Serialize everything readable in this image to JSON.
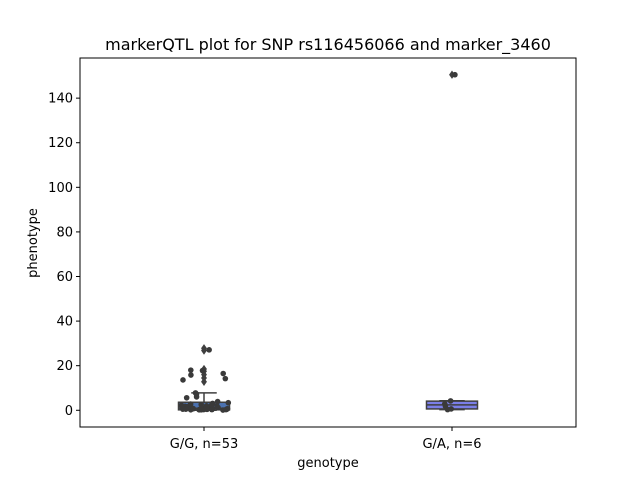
{
  "chart_data": {
    "type": "box",
    "title": "markerQTL plot for SNP rs116456066 and marker_3460",
    "xlabel": "genotype",
    "ylabel": "phenotype",
    "ylim": [
      -7.5,
      158
    ],
    "yticks": [
      0,
      20,
      40,
      60,
      80,
      100,
      120,
      140
    ],
    "grid": false,
    "categories": [
      "G/G, n=53",
      "G/A, n=6"
    ],
    "boxes": [
      {
        "category": "G/G, n=53",
        "color": "#4c72b0",
        "q1": 0.2,
        "median": 0.9,
        "q3": 3.6,
        "whisker_low": 0.0,
        "whisker_high": 7.8,
        "outliers": [
          12.8,
          14.5,
          16.0,
          17.5,
          18.5,
          26.8,
          27.8
        ]
      },
      {
        "category": "G/A, n=6",
        "color": "#7b7fe8",
        "q1": 0.6,
        "median": 2.4,
        "q3": 4.1,
        "whisker_low": 0.3,
        "whisker_high": 4.3,
        "outliers": [
          150.5
        ]
      }
    ],
    "strip_points": [
      {
        "category": "G/G, n=53",
        "values": [
          0.3,
          0.5,
          0.8,
          1.1,
          0.2,
          0.6,
          1.4,
          0.1,
          0.9,
          0.4,
          0.7,
          1.2,
          0.3,
          0.5,
          0.8,
          0.2,
          0.6,
          1.0,
          0.4,
          0.9,
          1.5,
          2.2,
          0.3,
          0.7,
          1.8,
          2.6,
          0.5,
          1.1,
          0.4,
          2.0,
          3.1,
          0.8,
          1.6,
          3.4,
          0.6,
          2.8,
          1.3,
          7.8,
          5.6,
          3.9,
          6.0,
          7.2,
          13.6,
          14.2,
          15.8,
          16.5,
          17.8,
          18.0,
          27.1,
          0.2,
          1.9,
          2.4,
          0.5
        ]
      },
      {
        "category": "G/A, n=6",
        "values": [
          0.3,
          0.6,
          1.8,
          2.9,
          4.2,
          150.5
        ]
      }
    ]
  }
}
